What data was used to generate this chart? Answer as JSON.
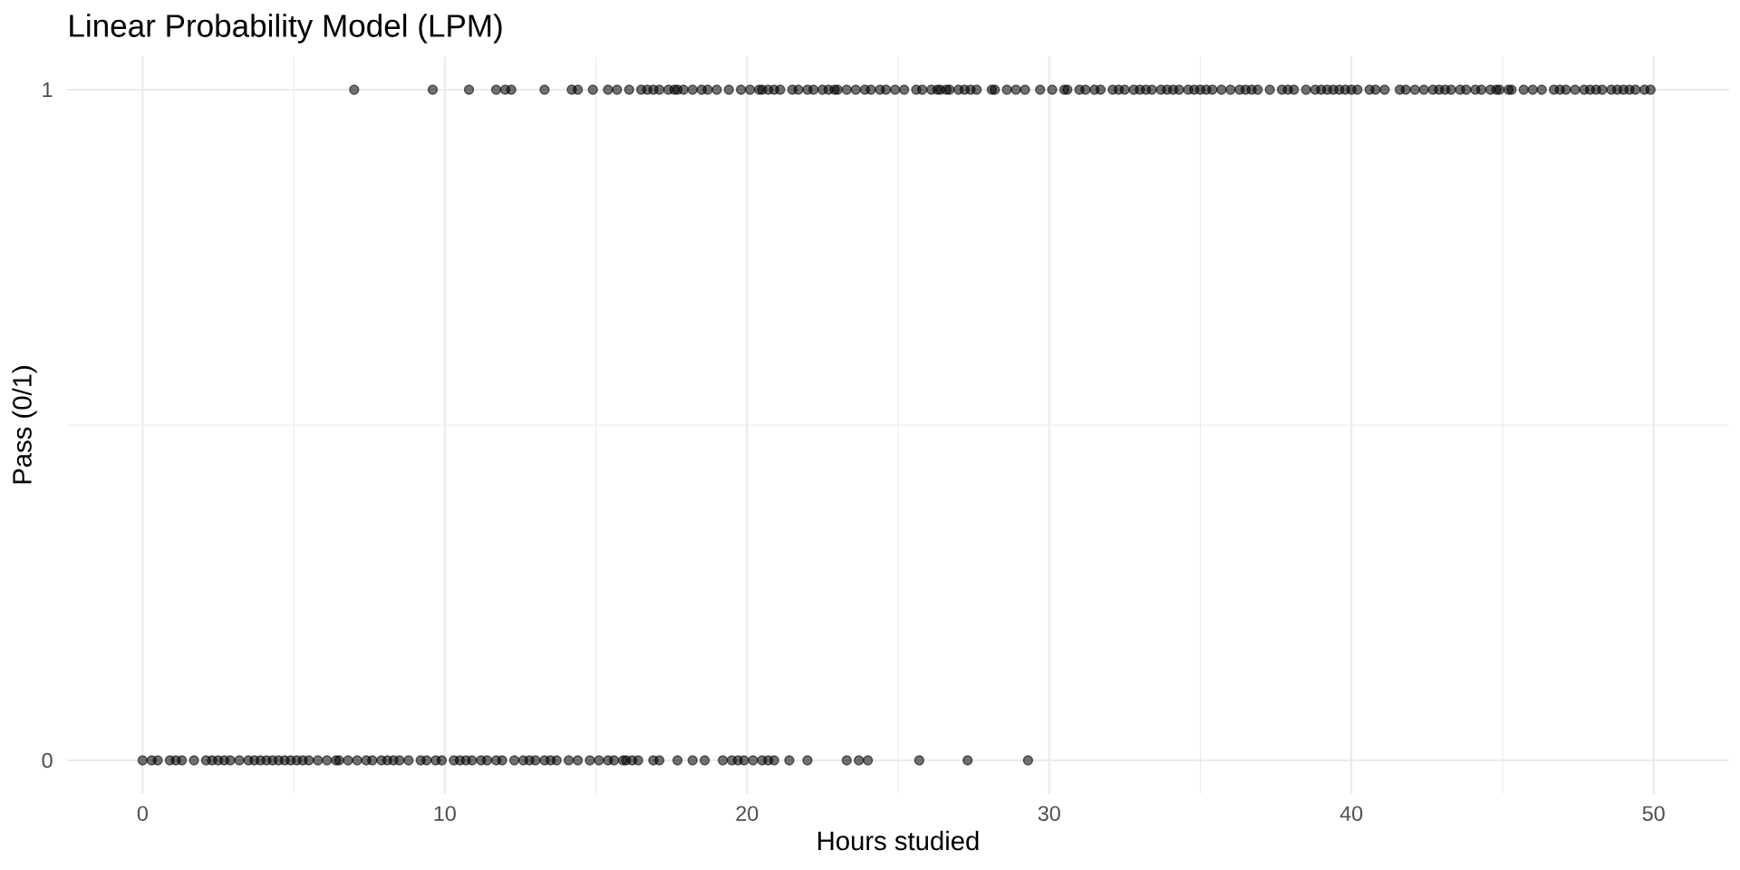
{
  "chart_data": {
    "type": "scatter",
    "title": "Linear Probability Model (LPM)",
    "xlabel": "Hours studied",
    "ylabel": "Pass (0/1)",
    "series": [
      {
        "color": "#000000",
        "x": [
          7.0,
          9.6,
          10.8,
          11.7,
          12.0,
          12.2,
          13.3,
          14.2,
          14.4,
          14.9,
          15.4,
          15.7,
          16.1,
          16.5,
          16.7,
          16.9,
          17.1,
          17.4,
          17.6,
          17.7,
          17.9,
          18.2,
          18.5,
          18.7,
          19.0,
          19.4,
          19.8,
          20.1,
          20.4,
          20.5,
          20.7,
          20.9,
          21.1,
          21.5,
          21.7,
          22.0,
          22.2,
          22.5,
          22.7,
          22.9,
          23.0,
          23.3,
          23.6,
          23.9,
          24.1,
          24.4,
          24.6,
          24.9,
          25.2,
          25.6,
          25.8,
          26.1,
          26.3,
          26.4,
          26.6,
          26.7,
          27.0,
          27.2,
          27.4,
          27.6,
          28.1,
          28.2,
          28.6,
          28.9,
          29.2,
          29.7,
          30.1,
          30.5,
          30.6,
          31.0,
          31.2,
          31.5,
          31.7,
          32.1,
          32.3,
          32.5,
          32.8,
          33.0,
          33.2,
          33.4,
          33.7,
          33.9,
          34.1,
          34.3,
          34.6,
          34.8,
          35.0,
          35.2,
          35.4,
          35.7,
          36.0,
          36.3,
          36.5,
          36.7,
          36.9,
          37.3,
          37.7,
          37.9,
          38.1,
          38.5,
          38.8,
          39.0,
          39.2,
          39.4,
          39.6,
          39.8,
          40.0,
          40.2,
          40.6,
          40.8,
          41.1,
          41.6,
          41.8,
          42.1,
          42.4,
          42.7,
          42.9,
          43.1,
          43.3,
          43.6,
          43.8,
          44.1,
          44.3,
          44.6,
          44.8,
          44.9,
          45.2,
          45.3,
          45.7,
          46.0,
          46.3,
          46.7,
          46.9,
          47.1,
          47.4,
          47.7,
          47.9,
          48.1,
          48.3,
          48.6,
          48.8,
          49.0,
          49.2,
          49.4,
          49.7,
          49.9
        ],
        "values": [
          1,
          1,
          1,
          1,
          1,
          1,
          1,
          1,
          1,
          1,
          1,
          1,
          1,
          1,
          1,
          1,
          1,
          1,
          1,
          1,
          1,
          1,
          1,
          1,
          1,
          1,
          1,
          1,
          1,
          1,
          1,
          1,
          1,
          1,
          1,
          1,
          1,
          1,
          1,
          1,
          1,
          1,
          1,
          1,
          1,
          1,
          1,
          1,
          1,
          1,
          1,
          1,
          1,
          1,
          1,
          1,
          1,
          1,
          1,
          1,
          1,
          1,
          1,
          1,
          1,
          1,
          1,
          1,
          1,
          1,
          1,
          1,
          1,
          1,
          1,
          1,
          1,
          1,
          1,
          1,
          1,
          1,
          1,
          1,
          1,
          1,
          1,
          1,
          1,
          1,
          1,
          1,
          1,
          1,
          1,
          1,
          1,
          1,
          1,
          1,
          1,
          1,
          1,
          1,
          1,
          1,
          1,
          1,
          1,
          1,
          1,
          1,
          1,
          1,
          1,
          1,
          1,
          1,
          1,
          1,
          1,
          1,
          1,
          1,
          1,
          1,
          1,
          1,
          1,
          1,
          1,
          1,
          1,
          1,
          1,
          1,
          1,
          1,
          1,
          1,
          1,
          1,
          1,
          1,
          1,
          1
        ]
      },
      {
        "color": "#000000",
        "x": [
          0.0,
          0.3,
          0.5,
          0.9,
          1.1,
          1.3,
          1.7,
          2.1,
          2.3,
          2.5,
          2.7,
          2.9,
          3.2,
          3.5,
          3.7,
          3.9,
          4.1,
          4.3,
          4.5,
          4.7,
          4.9,
          5.1,
          5.3,
          5.5,
          5.8,
          6.1,
          6.4,
          6.5,
          6.8,
          7.1,
          7.4,
          7.6,
          7.9,
          8.1,
          8.3,
          8.5,
          8.8,
          9.2,
          9.4,
          9.7,
          9.9,
          10.3,
          10.5,
          10.7,
          10.9,
          11.2,
          11.4,
          11.7,
          11.9,
          12.3,
          12.6,
          12.8,
          13.0,
          13.3,
          13.5,
          13.7,
          14.1,
          14.4,
          14.8,
          15.1,
          15.4,
          15.6,
          15.9,
          16.0,
          16.2,
          16.4,
          16.9,
          17.1,
          17.7,
          18.2,
          18.6,
          19.2,
          19.5,
          19.7,
          19.9,
          20.2,
          20.5,
          20.7,
          20.9,
          21.4,
          22.0,
          23.3,
          23.7,
          24.0,
          25.7,
          27.3,
          29.3
        ],
        "values": [
          0,
          0,
          0,
          0,
          0,
          0,
          0,
          0,
          0,
          0,
          0,
          0,
          0,
          0,
          0,
          0,
          0,
          0,
          0,
          0,
          0,
          0,
          0,
          0,
          0,
          0,
          0,
          0,
          0,
          0,
          0,
          0,
          0,
          0,
          0,
          0,
          0,
          0,
          0,
          0,
          0,
          0,
          0,
          0,
          0,
          0,
          0,
          0,
          0,
          0,
          0,
          0,
          0,
          0,
          0,
          0,
          0,
          0,
          0,
          0,
          0,
          0,
          0,
          0,
          0,
          0,
          0,
          0,
          0,
          0,
          0,
          0,
          0,
          0,
          0,
          0,
          0,
          0,
          0,
          0,
          0,
          0,
          0,
          0,
          0,
          0,
          0
        ]
      }
    ],
    "xlim": [
      -2.5,
      52.5
    ],
    "ylim": [
      -0.05,
      1.05
    ],
    "xticks": [
      0,
      {
        "value": 5,
        "label": null
      },
      10,
      {
        "value": 15,
        "label": null
      },
      20,
      {
        "value": 25,
        "label": null
      },
      30,
      {
        "value": 35,
        "label": null
      },
      40,
      {
        "value": 45,
        "label": null
      },
      50
    ],
    "yticks": [
      0,
      {
        "value": 0.5,
        "label": null
      },
      1
    ],
    "grid": true,
    "marker": "circle"
  }
}
